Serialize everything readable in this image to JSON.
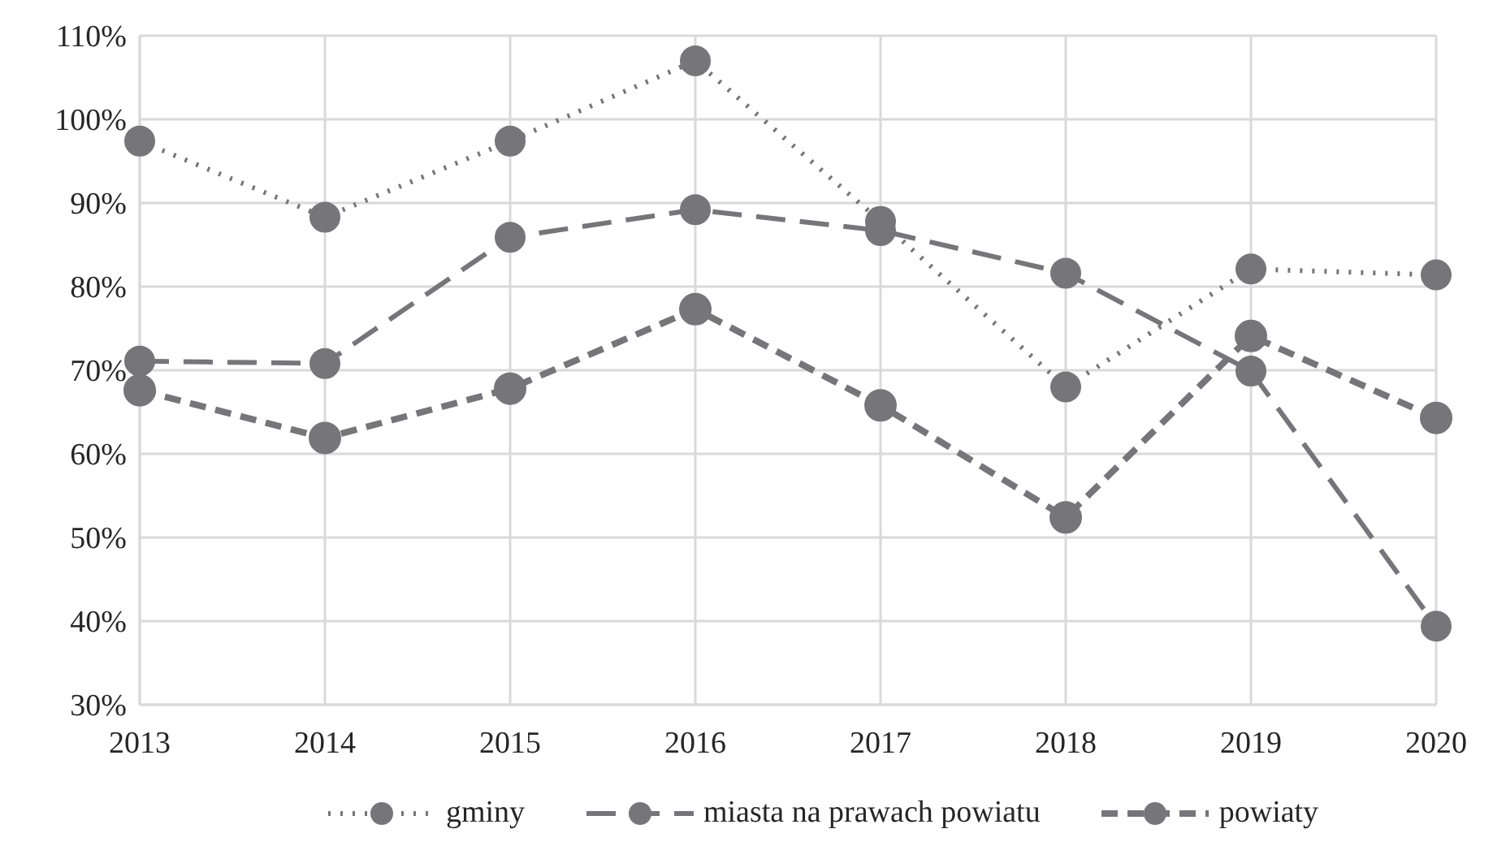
{
  "chart_data": {
    "type": "line",
    "categories": [
      "2013",
      "2014",
      "2015",
      "2016",
      "2017",
      "2018",
      "2019",
      "2020"
    ],
    "series": [
      {
        "name": "gminy",
        "color": "#76767a",
        "line_style": "dotted",
        "values": [
          97.4,
          88.3,
          97.4,
          107,
          87.8,
          68,
          82.1,
          81.4
        ]
      },
      {
        "name": "miasta na prawach powiatu",
        "color": "#76767a",
        "line_style": "dashed",
        "values": [
          71.1,
          70.8,
          85.9,
          89.2,
          86.7,
          81.6,
          69.9,
          39.4
        ]
      },
      {
        "name": "powiaty",
        "color": "#76767a",
        "line_style": "dashed",
        "values": [
          67.6,
          61.9,
          67.8,
          77.3,
          65.8,
          52.4,
          74.1,
          64.3
        ]
      }
    ],
    "ylim": [
      30,
      110
    ],
    "yticks": [
      {
        "value": 30,
        "label": "30%"
      },
      {
        "value": 40,
        "label": "40%"
      },
      {
        "value": 50,
        "label": "50%"
      },
      {
        "value": 60,
        "label": "60%"
      },
      {
        "value": 70,
        "label": "70%"
      },
      {
        "value": 80,
        "label": "80%"
      },
      {
        "value": 90,
        "label": "90%"
      },
      {
        "value": 100,
        "label": "100%"
      },
      {
        "value": 110,
        "label": "110%"
      }
    ],
    "grid": true,
    "legend": "bottom",
    "marker": "circle"
  }
}
